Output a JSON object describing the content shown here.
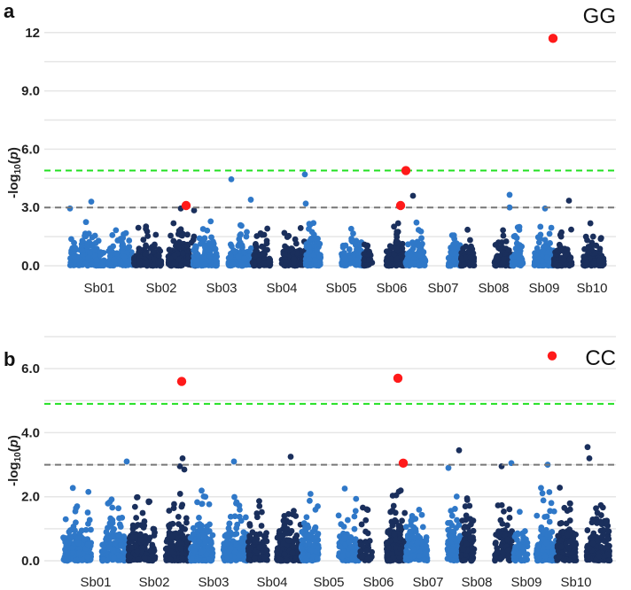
{
  "colors": {
    "light": "#2f78c8",
    "dark": "#1a2f5c",
    "highlight": "#ff1a1a",
    "genome_wide": "#22e022",
    "suggestive": "#777777"
  },
  "chart_data": [
    {
      "type": "scatter",
      "panel_letter": "a",
      "title": "GG",
      "ylabel_parts": [
        "-log",
        "10",
        "(",
        "p",
        ")"
      ],
      "ylim": [
        0,
        12.4
      ],
      "yticks": [
        0,
        3,
        6,
        9,
        12
      ],
      "ytick_labels": [
        "0.0",
        "3.0",
        "6.0",
        "9.0",
        "12"
      ],
      "minor_grid_step": 1.5,
      "thresholds": {
        "genome_wide": 4.9,
        "suggestive": 3.0
      },
      "xlim": [
        0,
        650
      ],
      "chromosomes": [
        {
          "label": "Sb01",
          "pos": 62
        },
        {
          "label": "Sb02",
          "pos": 132
        },
        {
          "label": "Sb03",
          "pos": 200
        },
        {
          "label": "Sb04",
          "pos": 268
        },
        {
          "label": "Sb05",
          "pos": 335
        },
        {
          "label": "Sb06",
          "pos": 392
        },
        {
          "label": "Sb07",
          "pos": 450
        },
        {
          "label": "Sb08",
          "pos": 507
        },
        {
          "label": "Sb09",
          "pos": 564
        },
        {
          "label": "Sb10",
          "pos": 618
        }
      ],
      "clusters": [
        {
          "range": [
            29,
            68
          ],
          "color": "light",
          "n": 170
        },
        {
          "range": [
            72,
            101
          ],
          "color": "light",
          "n": 150
        },
        {
          "range": [
            101,
            132
          ],
          "color": "dark",
          "n": 150
        },
        {
          "range": [
            140,
            172
          ],
          "color": "dark",
          "n": 170
        },
        {
          "range": [
            168,
            195
          ],
          "color": "light",
          "n": 150
        },
        {
          "range": [
            208,
            235
          ],
          "color": "light",
          "n": 130
        },
        {
          "range": [
            235,
            255
          ],
          "color": "dark",
          "n": 90
        },
        {
          "range": [
            268,
            295
          ],
          "color": "dark",
          "n": 150
        },
        {
          "range": [
            295,
            312
          ],
          "color": "light",
          "n": 110
        },
        {
          "range": [
            335,
            360
          ],
          "color": "light",
          "n": 90
        },
        {
          "range": [
            360,
            370
          ],
          "color": "dark",
          "n": 40
        },
        {
          "range": [
            386,
            408
          ],
          "color": "dark",
          "n": 170
        },
        {
          "range": [
            408,
            430
          ],
          "color": "light",
          "n": 130
        },
        {
          "range": [
            456,
            470
          ],
          "color": "light",
          "n": 90
        },
        {
          "range": [
            470,
            485
          ],
          "color": "dark",
          "n": 80
        },
        {
          "range": [
            508,
            528
          ],
          "color": "dark",
          "n": 100
        },
        {
          "range": [
            528,
            540
          ],
          "color": "light",
          "n": 60
        },
        {
          "range": [
            553,
            575
          ],
          "color": "light",
          "n": 120
        },
        {
          "range": [
            575,
            595
          ],
          "color": "dark",
          "n": 100
        },
        {
          "range": [
            608,
            632
          ],
          "color": "dark",
          "n": 110
        }
      ],
      "outliers": [
        {
          "x": 53,
          "y": 3.3,
          "color": "light"
        },
        {
          "x": 29,
          "y": 2.95,
          "color": "light"
        },
        {
          "x": 211,
          "y": 4.45,
          "color": "light"
        },
        {
          "x": 233,
          "y": 3.4,
          "color": "light"
        },
        {
          "x": 294,
          "y": 4.7,
          "color": "light"
        },
        {
          "x": 295,
          "y": 3.2,
          "color": "light"
        },
        {
          "x": 154,
          "y": 2.95,
          "color": "dark"
        },
        {
          "x": 169,
          "y": 2.85,
          "color": "dark"
        },
        {
          "x": 416,
          "y": 3.6,
          "color": "dark"
        },
        {
          "x": 525,
          "y": 3.65,
          "color": "light"
        },
        {
          "x": 525,
          "y": 3.0,
          "color": "light"
        },
        {
          "x": 565,
          "y": 2.95,
          "color": "light"
        },
        {
          "x": 592,
          "y": 3.35,
          "color": "dark"
        }
      ],
      "highlighted": [
        {
          "x": 160,
          "y": 3.1
        },
        {
          "x": 408,
          "y": 4.9
        },
        {
          "x": 402,
          "y": 3.1
        },
        {
          "x": 574,
          "y": 11.7
        }
      ]
    },
    {
      "type": "scatter",
      "panel_letter": "b",
      "title": "CC",
      "ylabel_parts": [
        "-log",
        "10",
        "(",
        "p",
        ")"
      ],
      "ylim": [
        0,
        7.0
      ],
      "yticks": [
        0,
        2,
        4,
        6
      ],
      "ytick_labels": [
        "0.0",
        "2.0",
        "4.0",
        "6.0"
      ],
      "minor_grid_step": 1.0,
      "thresholds": {
        "genome_wide": 4.9,
        "suggestive": 3.0
      },
      "xlim": [
        0,
        650
      ],
      "chromosomes": [
        {
          "label": "Sb01",
          "pos": 58
        },
        {
          "label": "Sb02",
          "pos": 124
        },
        {
          "label": "Sb03",
          "pos": 191
        },
        {
          "label": "Sb04",
          "pos": 257
        },
        {
          "label": "Sb05",
          "pos": 321
        },
        {
          "label": "Sb06",
          "pos": 377
        },
        {
          "label": "Sb07",
          "pos": 433
        },
        {
          "label": "Sb08",
          "pos": 488
        },
        {
          "label": "Sb09",
          "pos": 544
        },
        {
          "label": "Sb10",
          "pos": 600
        }
      ],
      "clusters": [
        {
          "range": [
            21,
            53
          ],
          "color": "light",
          "n": 190
        },
        {
          "range": [
            65,
            95
          ],
          "color": "light",
          "n": 170
        },
        {
          "range": [
            95,
            125
          ],
          "color": "dark",
          "n": 160
        },
        {
          "range": [
            137,
            165
          ],
          "color": "dark",
          "n": 200
        },
        {
          "range": [
            165,
            190
          ],
          "color": "light",
          "n": 170
        },
        {
          "range": [
            202,
            230
          ],
          "color": "light",
          "n": 170
        },
        {
          "range": [
            230,
            252
          ],
          "color": "dark",
          "n": 120
        },
        {
          "range": [
            262,
            290
          ],
          "color": "dark",
          "n": 150
        },
        {
          "range": [
            290,
            310
          ],
          "color": "light",
          "n": 130
        },
        {
          "range": [
            332,
            356
          ],
          "color": "light",
          "n": 110
        },
        {
          "range": [
            356,
            370
          ],
          "color": "dark",
          "n": 40
        },
        {
          "range": [
            386,
            408
          ],
          "color": "dark",
          "n": 200
        },
        {
          "range": [
            408,
            432
          ],
          "color": "light",
          "n": 140
        },
        {
          "range": [
            455,
            470
          ],
          "color": "light",
          "n": 100
        },
        {
          "range": [
            470,
            485
          ],
          "color": "dark",
          "n": 90
        },
        {
          "range": [
            508,
            530
          ],
          "color": "dark",
          "n": 110
        },
        {
          "range": [
            530,
            545
          ],
          "color": "light",
          "n": 60
        },
        {
          "range": [
            555,
            578
          ],
          "color": "light",
          "n": 150
        },
        {
          "range": [
            578,
            600
          ],
          "color": "dark",
          "n": 120
        },
        {
          "range": [
            612,
            638
          ],
          "color": "dark",
          "n": 140
        }
      ],
      "outliers": [
        {
          "x": 93,
          "y": 3.1,
          "color": "light"
        },
        {
          "x": 156,
          "y": 3.2,
          "color": "dark"
        },
        {
          "x": 153,
          "y": 2.95,
          "color": "dark"
        },
        {
          "x": 158,
          "y": 2.85,
          "color": "dark"
        },
        {
          "x": 214,
          "y": 3.1,
          "color": "light"
        },
        {
          "x": 278,
          "y": 3.25,
          "color": "dark"
        },
        {
          "x": 468,
          "y": 3.45,
          "color": "dark"
        },
        {
          "x": 456,
          "y": 2.9,
          "color": "light"
        },
        {
          "x": 527,
          "y": 3.05,
          "color": "light"
        },
        {
          "x": 516,
          "y": 2.95,
          "color": "dark"
        },
        {
          "x": 568,
          "y": 3.0,
          "color": "light"
        },
        {
          "x": 613,
          "y": 3.55,
          "color": "dark"
        },
        {
          "x": 615,
          "y": 3.2,
          "color": "dark"
        }
      ],
      "highlighted": [
        {
          "x": 155,
          "y": 5.6
        },
        {
          "x": 399,
          "y": 5.7
        },
        {
          "x": 405,
          "y": 3.05
        },
        {
          "x": 573,
          "y": 6.4
        }
      ]
    }
  ]
}
